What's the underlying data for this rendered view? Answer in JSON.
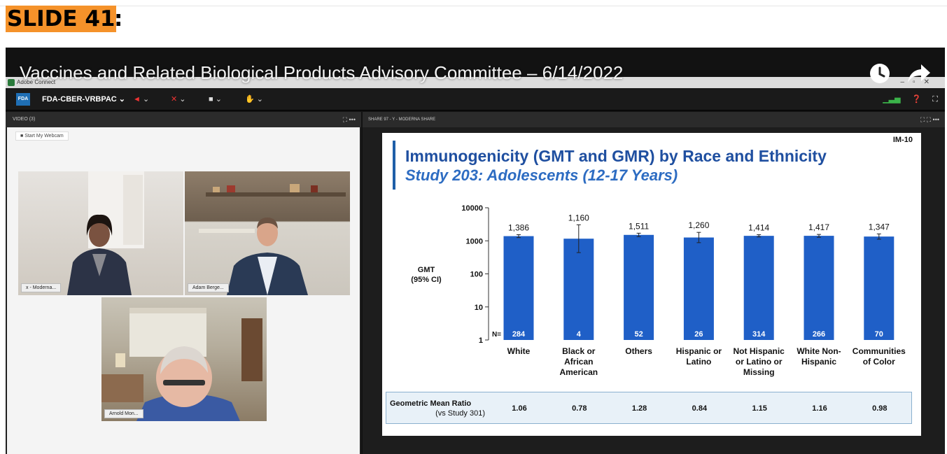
{
  "slide_label": "SLIDE 41",
  "slide_colon": ":",
  "youtube": {
    "title": "Vaccines and Related Biological Products Advisory Committee – 6/14/2022",
    "icons": [
      "clock-icon",
      "share-icon"
    ]
  },
  "adobe_connect": {
    "app_title": "Adobe Connect",
    "room_name": "FDA-CBER-VRBPAC",
    "fda_logo_text": "FDA",
    "video_pod": {
      "title": "VIDEO (3)",
      "webcam_button": "Start My Webcam",
      "participants": [
        {
          "name": "x - Moderna..."
        },
        {
          "name": "Adam Berge..."
        },
        {
          "name": "Arnold Mon..."
        }
      ]
    },
    "share_pod": {
      "title": "SHARE 97 - Y - MODERNA SHARE"
    }
  },
  "slide": {
    "code": "IM-10",
    "title": "Immunogenicity (GMT and GMR) by Race and Ethnicity",
    "subtitle": "Study 203: Adolescents (12-17 Years)",
    "gmt_label_line1": "GMT",
    "gmt_label_line2": "(95% CI)",
    "n_prefix": "N=",
    "gmr_label_line1": "Geometric Mean Ratio",
    "gmr_label_line2": "(vs Study 301)",
    "colors": {
      "bar": "#1f5fc7",
      "title": "#1f4fa0",
      "subtitle": "#2d6cc2"
    }
  },
  "chart_data": {
    "type": "bar",
    "yscale": "log",
    "ylim": [
      1,
      10000
    ],
    "yticks": [
      "1",
      "10",
      "100",
      "1000",
      "10000"
    ],
    "ylabel": "GMT (95% CI)",
    "categories": [
      [
        "White"
      ],
      [
        "Black or",
        "African",
        "American"
      ],
      [
        "Others"
      ],
      [
        "Hispanic or",
        "Latino"
      ],
      [
        "Not Hispanic",
        "or Latino or",
        "Missing"
      ],
      [
        "White Non-",
        "Hispanic"
      ],
      [
        "Communities",
        "of Color"
      ]
    ],
    "values": [
      1386,
      1160,
      1511,
      1260,
      1414,
      1417,
      1347
    ],
    "value_labels": [
      "1,386",
      "1,160",
      "1,511",
      "1,260",
      "1,414",
      "1,417",
      "1,347"
    ],
    "n": [
      "284",
      "4",
      "52",
      "26",
      "314",
      "266",
      "70"
    ],
    "ci_low": [
      1250,
      440,
      1340,
      880,
      1310,
      1280,
      1120
    ],
    "ci_high": [
      1540,
      3060,
      1700,
      1800,
      1530,
      1560,
      1620
    ],
    "gmr": [
      "1.06",
      "0.78",
      "1.28",
      "0.84",
      "1.15",
      "1.16",
      "0.98"
    ]
  }
}
